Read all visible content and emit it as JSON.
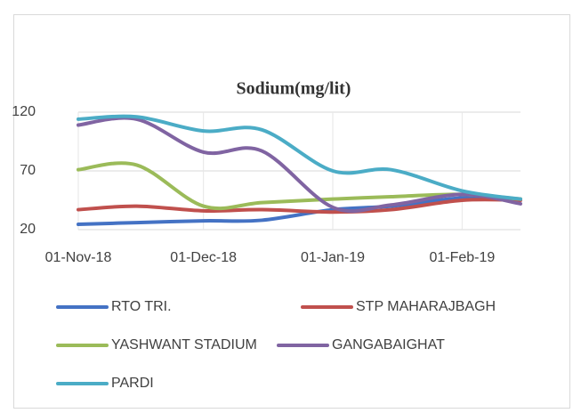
{
  "chart_data": {
    "type": "line",
    "title": "Sodium(mg/lit)",
    "x": [
      "2018-11-01",
      "2018-11-15",
      "2018-12-01",
      "2018-12-15",
      "2019-01-01",
      "2019-01-15",
      "2019-02-01",
      "2019-02-15"
    ],
    "series": [
      {
        "name": "RTO TRI.",
        "color": "#4472c4",
        "values": [
          24.5,
          26,
          27.5,
          28,
          37,
          40,
          47,
          46
        ]
      },
      {
        "name": "STP MAHARAJBAGH",
        "color": "#c0504d",
        "values": [
          37,
          40,
          36,
          37,
          35,
          37,
          45,
          45
        ]
      },
      {
        "name": "YASHWANT STADIUM",
        "color": "#9bbb59",
        "values": [
          71,
          75,
          40,
          43,
          46,
          48,
          50,
          46
        ]
      },
      {
        "name": "GANGABAIGHAT",
        "color": "#8064a2",
        "values": [
          109,
          114,
          86,
          87,
          39,
          41,
          50,
          42
        ]
      },
      {
        "name": "PARDI",
        "color": "#4bacc6",
        "values": [
          114,
          116,
          104,
          105,
          70,
          71,
          53,
          46
        ]
      }
    ],
    "xlim": [
      "2018-11-01",
      "2019-02-15"
    ],
    "xticks": [
      {
        "value": "2018-11-01",
        "label": "01-Nov-18"
      },
      {
        "value": "2018-12-01",
        "label": "01-Dec-18"
      },
      {
        "value": "2019-01-01",
        "label": "01-Jan-19"
      },
      {
        "value": "2019-02-01",
        "label": "01-Feb-19"
      }
    ],
    "ylim": [
      20,
      120
    ],
    "yticks": [
      20,
      70,
      120
    ],
    "grid": true,
    "legend": "bottom"
  }
}
